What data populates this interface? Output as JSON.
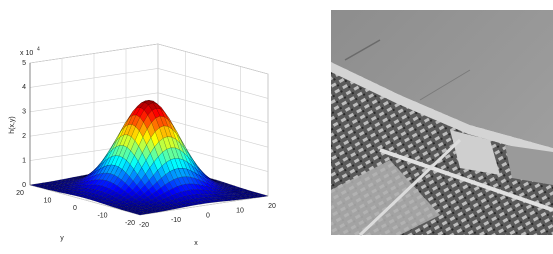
{
  "plot": {
    "z_label": "h(x,y)",
    "z_scale_base": "x 10",
    "z_scale_exponent": "4",
    "z_ticks": [
      "0",
      "1",
      "2",
      "3",
      "4",
      "5"
    ],
    "x_label": "x",
    "x_ticks": [
      "-20",
      "-10",
      "0",
      "10",
      "20"
    ],
    "y_label": "y",
    "y_ticks": [
      "20",
      "10",
      "0",
      "-10",
      "-20"
    ]
  }
}
